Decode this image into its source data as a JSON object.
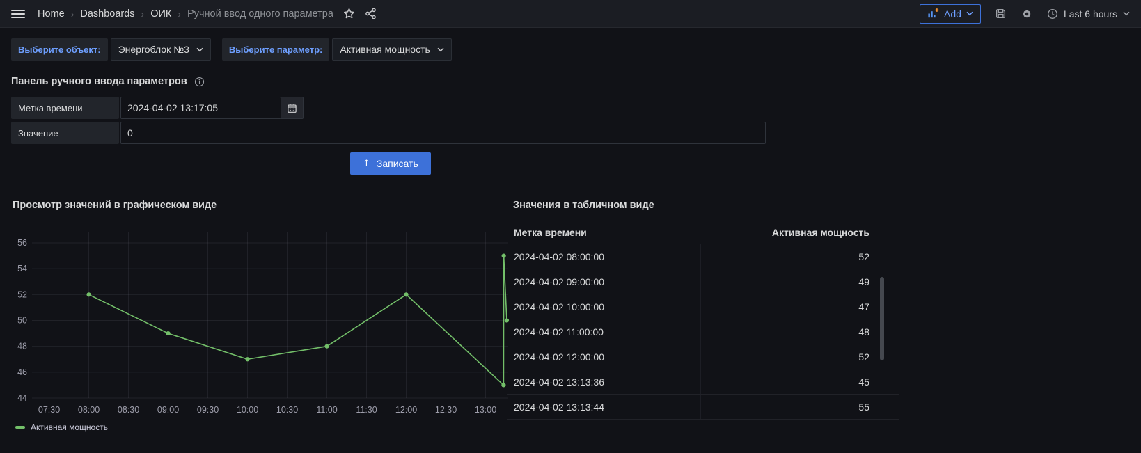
{
  "colors": {
    "accent_blue": "#3d71d9",
    "link_blue": "#6e9fff",
    "series_green": "#73bf69",
    "background": "#111217",
    "topbar_background": "#1b1d23"
  },
  "topnav": {
    "breadcrumbs": [
      "Home",
      "Dashboards",
      "ОИК",
      "Ручной ввод одного параметра"
    ],
    "separator": "›",
    "add_button": "Add",
    "time_picker": "Last 6 hours"
  },
  "filters": {
    "object_label": "Выберите объект:",
    "object_value": "Энергоблок №3",
    "param_label": "Выберите параметр:",
    "param_value": "Активная мощность"
  },
  "form_panel": {
    "title": "Панель ручного ввода параметров",
    "fields": [
      {
        "label": "Метка времени",
        "value": "2024-04-02 13:17:05"
      },
      {
        "label": "Значение",
        "value": "0"
      }
    ],
    "submit_label": "Записать",
    "submit_icon": "↑"
  },
  "chart_panel": {
    "title": "Просмотр значений в графическом виде"
  },
  "chart_data": {
    "type": "line",
    "series": [
      {
        "name": "Активная мощность",
        "color": "#73bf69",
        "points": [
          [
            "08:00:00",
            52
          ],
          [
            "09:00:00",
            49
          ],
          [
            "10:00:00",
            47
          ],
          [
            "11:00:00",
            48
          ],
          [
            "12:00:00",
            52
          ],
          [
            "13:13:36",
            45
          ],
          [
            "13:13:44",
            55
          ],
          [
            "13:16:00",
            50
          ]
        ]
      }
    ],
    "x_range": [
      "07:17:05",
      "13:17:05"
    ],
    "x_ticks": [
      "07:30",
      "08:00",
      "08:30",
      "09:00",
      "09:30",
      "10:00",
      "10:30",
      "11:00",
      "11:30",
      "12:00",
      "12:30",
      "13:00"
    ],
    "ylim": [
      44,
      56
    ],
    "y_ticks": [
      44,
      46,
      48,
      50,
      52,
      54,
      56
    ],
    "grid": true,
    "legend_position": "bottom"
  },
  "table_panel": {
    "title": "Значения в табличном виде",
    "columns": [
      "Метка времени",
      "Активная мощность"
    ],
    "rows": [
      [
        "2024-04-02 08:00:00",
        "52"
      ],
      [
        "2024-04-02 09:00:00",
        "49"
      ],
      [
        "2024-04-02 10:00:00",
        "47"
      ],
      [
        "2024-04-02 11:00:00",
        "48"
      ],
      [
        "2024-04-02 12:00:00",
        "52"
      ],
      [
        "2024-04-02 13:13:36",
        "45"
      ],
      [
        "2024-04-02 13:13:44",
        "55"
      ]
    ]
  }
}
